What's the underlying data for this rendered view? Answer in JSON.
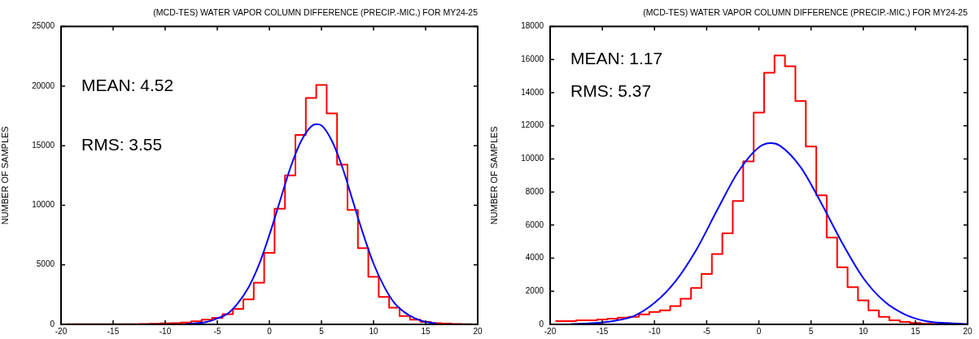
{
  "chart_data": [
    {
      "type": "histogram",
      "title": "(MCD-TES) WATER VAPOR COLUMN DIFFERENCE (PRECIP.-MIC.) FOR MY24-25",
      "ylabel": "NUMBER OF SAMPLES",
      "annotations": [
        "MEAN: 4.52",
        "RMS: 3.55"
      ],
      "bins": [
        -19.5,
        -18.5,
        -17.5,
        -16.5,
        -15.5,
        -14.5,
        -13.5,
        -12.5,
        -11.5,
        -10.5,
        -9.5,
        -8.5,
        -7.5,
        -6.5,
        -5.5,
        -4.5,
        -3.5,
        -2.5,
        -1.5,
        -0.5,
        0.5,
        1.5,
        2.5,
        3.5,
        4.5,
        5.5,
        6.5,
        7.5,
        8.5,
        9.5,
        10.5,
        11.5,
        12.5,
        13.5,
        14.5,
        15.5,
        16.5,
        17.5,
        18.5,
        19.5
      ],
      "series": [
        {
          "color": "#ff0000",
          "values": [
            10,
            10,
            10,
            10,
            10,
            10,
            20,
            30,
            50,
            80,
            100,
            150,
            250,
            400,
            550,
            850,
            1300,
            2100,
            3500,
            6000,
            9700,
            12500,
            15900,
            19000,
            20100,
            17700,
            13400,
            9600,
            6400,
            4000,
            2300,
            1400,
            700,
            400,
            200,
            100,
            60,
            40,
            20
          ]
        },
        {
          "type": "line",
          "color": "#0000ff",
          "x": [
            -8,
            -6,
            -5,
            -4,
            -3,
            -2,
            -1,
            0,
            1,
            2,
            3,
            4,
            4.5,
            5,
            6,
            7,
            8,
            9,
            10,
            11,
            12,
            13,
            14,
            15,
            16
          ],
          "values": [
            30,
            200,
            500,
            900,
            1800,
            3100,
            5000,
            7500,
            10300,
            13100,
            15300,
            16600,
            16800,
            16700,
            15400,
            13200,
            10400,
            7600,
            5100,
            3200,
            1800,
            1000,
            500,
            200,
            100
          ]
        }
      ],
      "xlim": [
        -20,
        20
      ],
      "xticks": [
        -20,
        -15,
        -10,
        -5,
        0,
        5,
        10,
        15,
        20
      ],
      "ylim": [
        0,
        25000
      ],
      "yticks": [
        0,
        5000,
        10000,
        15000,
        20000,
        25000
      ],
      "legend": false
    },
    {
      "type": "histogram",
      "title": "(MCD-TES) WATER VAPOR COLUMN DIFFERENCE (PRECIP.-MIC.) FOR MY24-25",
      "ylabel": "NUMBER OF SAMPLES",
      "annotations": [
        "MEAN: 1.17",
        "RMS: 5.37"
      ],
      "bins": [
        -19.5,
        -18.5,
        -17.5,
        -16.5,
        -15.5,
        -14.5,
        -13.5,
        -12.5,
        -11.5,
        -10.5,
        -9.5,
        -8.5,
        -7.5,
        -6.5,
        -5.5,
        -4.5,
        -3.5,
        -2.5,
        -1.5,
        -0.5,
        0.5,
        1.5,
        2.5,
        3.5,
        4.5,
        5.5,
        6.5,
        7.5,
        8.5,
        9.5,
        10.5,
        11.5,
        12.5,
        13.5,
        14.5,
        15.5,
        16.5,
        17.5,
        18.5,
        19.5
      ],
      "series": [
        {
          "color": "#ff0000",
          "values": [
            200,
            200,
            250,
            250,
            300,
            350,
            400,
            450,
            600,
            750,
            850,
            1100,
            1550,
            2200,
            3050,
            4250,
            5500,
            7450,
            9850,
            12800,
            15200,
            16250,
            15600,
            13500,
            10750,
            7800,
            5250,
            3450,
            2250,
            1450,
            850,
            450,
            250,
            150,
            80,
            40,
            20,
            10,
            10
          ]
        },
        {
          "type": "line",
          "color": "#0000ff",
          "x": [
            -18,
            -16,
            -14,
            -12,
            -10,
            -8,
            -6,
            -4,
            -2,
            0,
            1.17,
            2,
            4,
            6,
            8,
            10,
            12,
            14,
            16,
            18,
            20
          ],
          "values": [
            20,
            70,
            200,
            500,
            1300,
            2600,
            4500,
            6900,
            9200,
            10700,
            10950,
            10800,
            9500,
            7300,
            4900,
            2800,
            1400,
            600,
            200,
            80,
            20
          ]
        }
      ],
      "xlim": [
        -20,
        20
      ],
      "xticks": [
        -20,
        -15,
        -10,
        -5,
        0,
        5,
        10,
        15,
        20
      ],
      "ylim": [
        0,
        18000
      ],
      "yticks": [
        0,
        2000,
        4000,
        6000,
        8000,
        10000,
        12000,
        14000,
        16000,
        18000
      ],
      "legend": false
    }
  ]
}
